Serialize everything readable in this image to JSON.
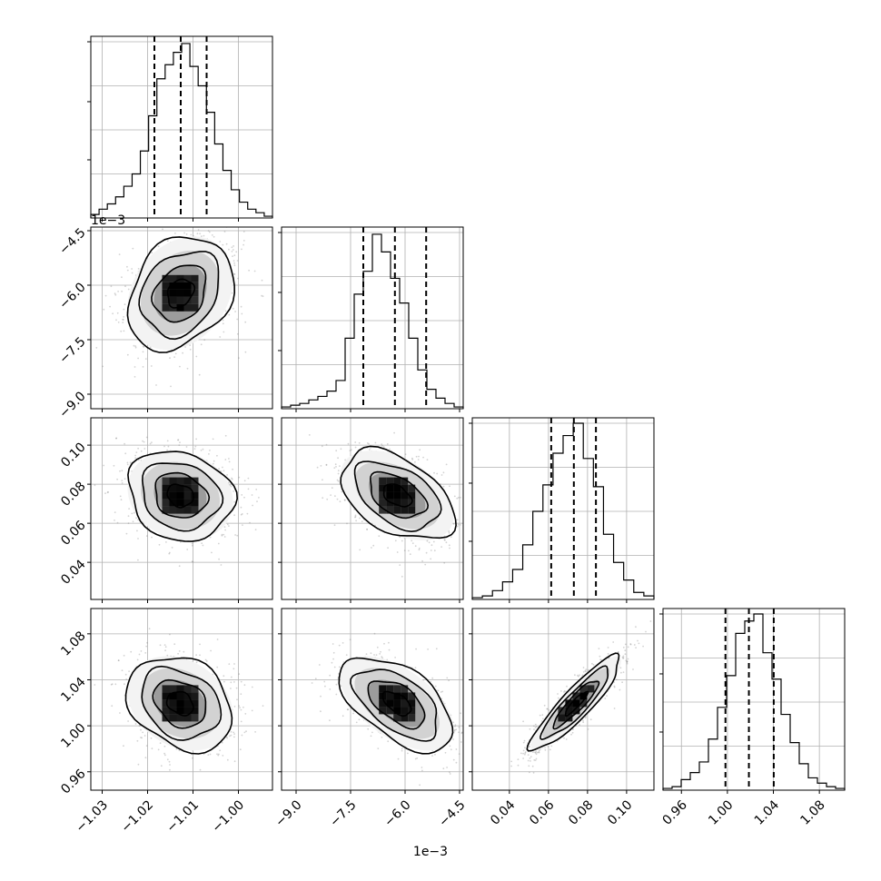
{
  "chart_data": {
    "type": "corner",
    "title": "",
    "parameters": [
      {
        "index": 0,
        "scale_label": "",
        "range": [
          -1.0325,
          -0.9925
        ],
        "ticks": [
          -1.03,
          -1.02,
          -1.01,
          -1.0
        ],
        "tick_labels": [
          "−1.03",
          "−1.02",
          "−1.01",
          "−1.00"
        ],
        "quantiles": [
          -1.0185,
          -1.0127,
          -1.007
        ],
        "hist_counts": [
          0.02,
          0.05,
          0.08,
          0.12,
          0.18,
          0.25,
          0.38,
          0.58,
          0.79,
          0.87,
          0.94,
          0.99,
          0.86,
          0.75,
          0.6,
          0.42,
          0.27,
          0.16,
          0.09,
          0.05,
          0.03,
          0.01
        ]
      },
      {
        "index": 1,
        "scale_label": "1e−3",
        "range": [
          -9.4,
          -4.4
        ],
        "ticks": [
          -9.0,
          -7.5,
          -6.0,
          -4.5
        ],
        "tick_labels": [
          "−9.0",
          "−7.5",
          "−6.0",
          "−4.5"
        ],
        "quantiles": [
          -7.15,
          -6.28,
          -5.42
        ],
        "hist_counts": [
          0.01,
          0.02,
          0.03,
          0.05,
          0.07,
          0.1,
          0.16,
          0.4,
          0.65,
          0.78,
          0.99,
          0.89,
          0.74,
          0.6,
          0.4,
          0.22,
          0.11,
          0.06,
          0.03,
          0.01
        ]
      },
      {
        "index": 2,
        "scale_label": "",
        "range": [
          0.021,
          0.114
        ],
        "ticks": [
          0.04,
          0.06,
          0.08,
          0.1
        ],
        "tick_labels": [
          "0.04",
          "0.06",
          "0.08",
          "0.10"
        ],
        "quantiles": [
          0.0614,
          0.073,
          0.0843
        ],
        "hist_counts": [
          0.01,
          0.02,
          0.05,
          0.1,
          0.17,
          0.31,
          0.5,
          0.65,
          0.83,
          0.93,
          1.0,
          0.8,
          0.64,
          0.37,
          0.21,
          0.11,
          0.04,
          0.02
        ]
      },
      {
        "index": 3,
        "scale_label": "",
        "range": [
          0.944,
          1.102
        ],
        "ticks": [
          0.96,
          1.0,
          1.04,
          1.08
        ],
        "tick_labels": [
          "0.96",
          "1.00",
          "1.04",
          "1.08"
        ],
        "quantiles": [
          0.9983,
          1.0187,
          1.0403
        ],
        "hist_counts": [
          0.01,
          0.02,
          0.06,
          0.1,
          0.16,
          0.29,
          0.47,
          0.65,
          0.89,
          0.96,
          1.0,
          0.78,
          0.63,
          0.43,
          0.27,
          0.15,
          0.07,
          0.04,
          0.02,
          0.01
        ]
      }
    ],
    "pairs": [
      {
        "x": 0,
        "y": 1,
        "center": [
          -1.0128,
          -6.22
        ],
        "sigma": [
          0.0058,
          0.78
        ],
        "corr": 0.25
      },
      {
        "x": 0,
        "y": 2,
        "center": [
          -1.0128,
          0.0742
        ],
        "sigma": [
          0.0058,
          0.0115
        ],
        "corr": -0.15
      },
      {
        "x": 1,
        "y": 2,
        "center": [
          -6.22,
          0.0742
        ],
        "sigma": [
          0.78,
          0.0115
        ],
        "corr": -0.45
      },
      {
        "x": 0,
        "y": 3,
        "center": [
          -1.0128,
          1.0195
        ],
        "sigma": [
          0.0058,
          0.0205
        ],
        "corr": -0.25
      },
      {
        "x": 1,
        "y": 3,
        "center": [
          -6.22,
          1.0195
        ],
        "sigma": [
          0.78,
          0.0205
        ],
        "corr": -0.55
      },
      {
        "x": 2,
        "y": 3,
        "center": [
          0.0742,
          1.0195
        ],
        "sigma": [
          0.0115,
          0.0205
        ],
        "corr": 0.9
      }
    ],
    "contour_levels_sigma": [
      0.5,
      1.0,
      1.5,
      2.0
    ],
    "grid": true,
    "colors": {
      "hist": "#000000",
      "points": "#808080",
      "density": "#000000",
      "grid": "#b0b0b0"
    }
  }
}
